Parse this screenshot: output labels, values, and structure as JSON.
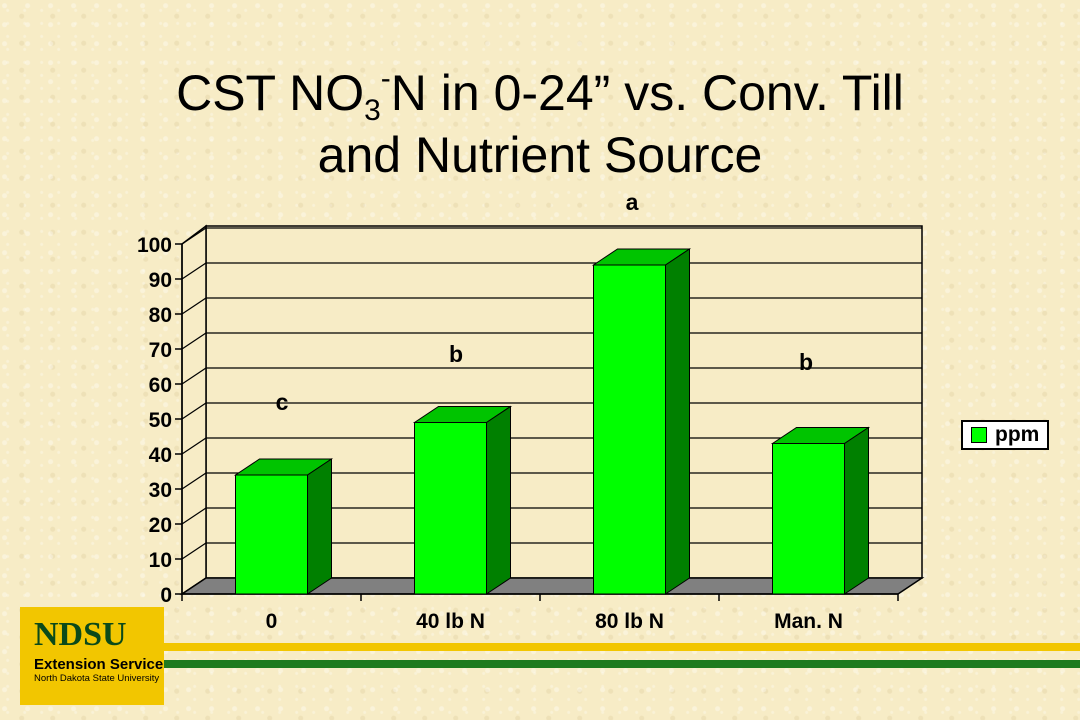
{
  "slide": {
    "title_line1_a": "CST NO",
    "title_sub": "3",
    "title_sup": "-",
    "title_line1_b": "N in 0-24” vs. Conv. Till",
    "title_line2": "and Nutrient Source"
  },
  "chart_data": {
    "type": "bar",
    "title": "",
    "categories": [
      "0",
      "40 lb N",
      "80 lb N",
      "Man. N"
    ],
    "series": [
      {
        "name": "ppm",
        "values": [
          34,
          49,
          94,
          43
        ]
      }
    ],
    "annotations": [
      "c",
      "b",
      "a",
      "b"
    ],
    "y_ticks": [
      0,
      10,
      20,
      30,
      40,
      50,
      60,
      70,
      80,
      90,
      100
    ],
    "ylim": [
      0,
      100
    ],
    "grid": true,
    "legend_position": "right",
    "bar_color": "#00ff00"
  },
  "logo": {
    "name": "NDSU",
    "line2": "Extension Service",
    "line3": "North Dakota State University"
  }
}
